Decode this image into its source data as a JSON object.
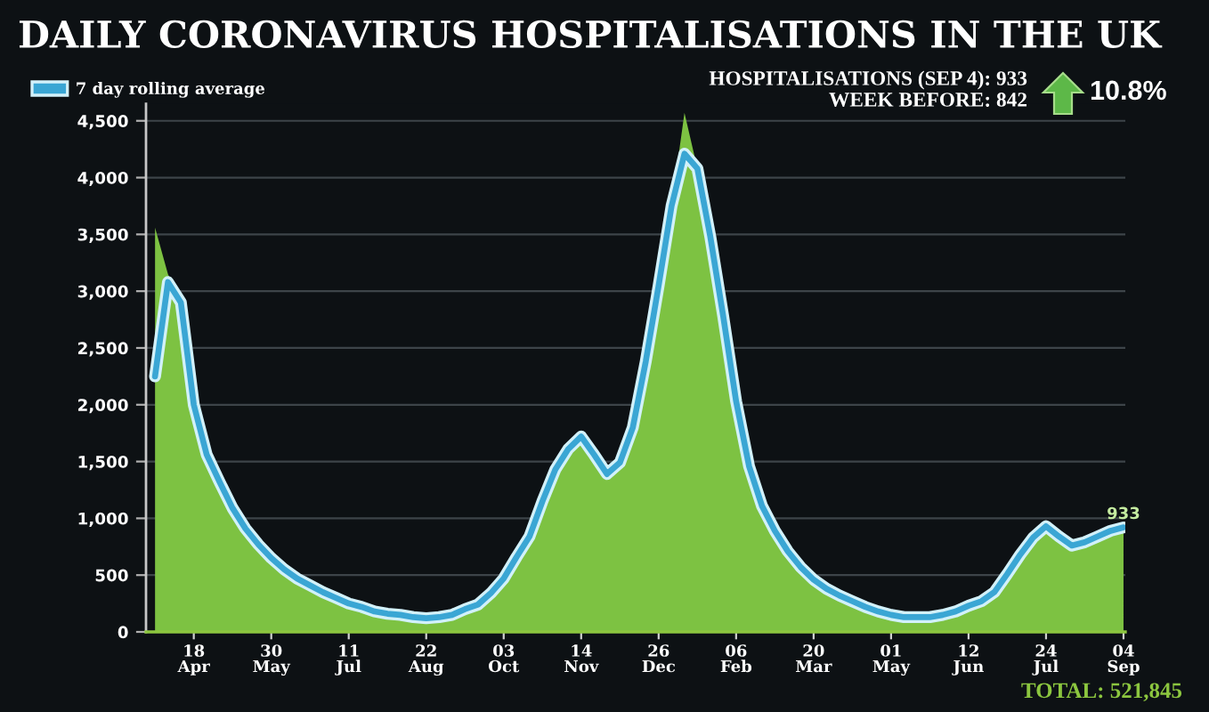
{
  "chart_data": {
    "type": "area",
    "title": "DAILY CORONAVIRUS HOSPITALISATIONS IN THE UK",
    "annotations": [
      "HOSPITALISATIONS (SEP 4): 933",
      "WEEK BEFORE: 842",
      "10.8%",
      "TOTAL: 521,845"
    ],
    "categories": [
      null,
      null,
      null,
      "18\nApr",
      null,
      null,
      null,
      null,
      null,
      "30\nMay",
      null,
      null,
      null,
      null,
      null,
      "11\nJul",
      null,
      null,
      null,
      null,
      null,
      "22\nAug",
      null,
      null,
      null,
      null,
      null,
      "03\nOct",
      null,
      null,
      null,
      null,
      null,
      "14\nNov",
      null,
      null,
      null,
      null,
      null,
      "26\nDec",
      null,
      null,
      null,
      null,
      null,
      "06\nFeb",
      null,
      null,
      null,
      null,
      null,
      "20\nMar",
      null,
      null,
      null,
      null,
      null,
      "01\nMay",
      null,
      null,
      null,
      null,
      null,
      "12\nJun",
      null,
      null,
      null,
      null,
      null,
      "24\nJul",
      null,
      null,
      null,
      null,
      null,
      "04\nSep"
    ],
    "ylim": [
      0,
      4650
    ],
    "yticks": [
      0,
      500,
      {
        "value": 1000,
        "label": "1,000"
      },
      {
        "value": 1500,
        "label": "1,500"
      },
      {
        "value": 2000,
        "label": "2,000"
      },
      {
        "value": 2500,
        "label": "2,500"
      },
      {
        "value": 3000,
        "label": "3,000"
      },
      {
        "value": 3500,
        "label": "3,500"
      },
      {
        "value": 4000,
        "label": "4,000"
      },
      {
        "value": 4500,
        "label": "4,500"
      }
    ],
    "grid": "y",
    "legend": "top left",
    "series": [
      {
        "color": "#7dc242",
        "values": [
          3560,
          3150,
          2900,
          2000,
          1560,
          1320,
          1090,
          910,
          770,
          650,
          550,
          470,
          410,
          350,
          300,
          250,
          220,
          180,
          160,
          150,
          130,
          120,
          130,
          150,
          200,
          240,
          340,
          470,
          660,
          840,
          1150,
          1430,
          1610,
          1720,
          1560,
          1390,
          1490,
          1800,
          2380,
          3050,
          3750,
          4570,
          4080,
          3480,
          2780,
          2030,
          1460,
          1110,
          890,
          710,
          570,
          460,
          380,
          320,
          270,
          220,
          180,
          150,
          130,
          130,
          130,
          150,
          180,
          230,
          270,
          350,
          510,
          680,
          830,
          930,
          840,
          760,
          790,
          840,
          890,
          933
        ],
        "value_labels": [
          null,
          null,
          null,
          null,
          null,
          null,
          null,
          null,
          null,
          null,
          null,
          null,
          null,
          null,
          null,
          null,
          null,
          null,
          null,
          null,
          null,
          null,
          null,
          null,
          null,
          null,
          null,
          null,
          null,
          null,
          null,
          null,
          null,
          null,
          null,
          null,
          null,
          null,
          null,
          null,
          null,
          null,
          null,
          null,
          null,
          null,
          null,
          null,
          null,
          null,
          null,
          null,
          null,
          null,
          null,
          null,
          null,
          null,
          null,
          null,
          null,
          null,
          null,
          null,
          null,
          null,
          null,
          null,
          null,
          null,
          null,
          null,
          null,
          null,
          null,
          "933"
        ]
      },
      {
        "type": "line",
        "name": "7 day rolling average",
        "color": "#3aa6d4",
        "values": [
          2250,
          3080,
          2900,
          2000,
          1560,
          1320,
          1090,
          910,
          770,
          650,
          550,
          470,
          410,
          350,
          300,
          250,
          220,
          180,
          160,
          150,
          130,
          120,
          130,
          150,
          200,
          240,
          340,
          470,
          660,
          840,
          1150,
          1430,
          1610,
          1720,
          1560,
          1390,
          1490,
          1800,
          2380,
          3050,
          3750,
          4210,
          4080,
          3480,
          2780,
          2030,
          1460,
          1110,
          890,
          710,
          570,
          460,
          380,
          320,
          270,
          220,
          180,
          150,
          130,
          130,
          130,
          150,
          180,
          230,
          270,
          350,
          510,
          680,
          830,
          930,
          840,
          760,
          790,
          840,
          890,
          920
        ]
      }
    ]
  }
}
